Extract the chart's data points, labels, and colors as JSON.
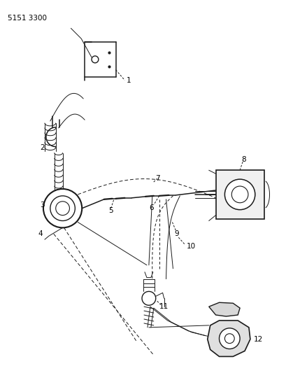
{
  "title": "5151 3300",
  "bg_color": "#ffffff",
  "line_color": "#1a1a1a",
  "label_color": "#000000",
  "fig_width": 4.1,
  "fig_height": 5.33,
  "dpi": 100
}
